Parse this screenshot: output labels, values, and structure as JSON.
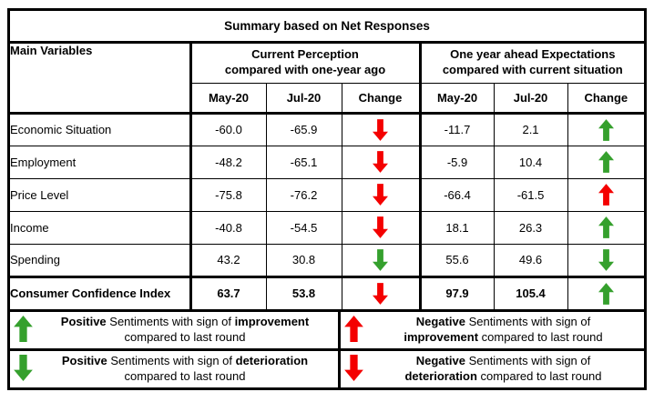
{
  "title": "Summary based on Net Responses",
  "colors": {
    "green": "#35A02D",
    "red": "#F40000",
    "border": "#000000"
  },
  "table": {
    "main_col_header": "Main Variables",
    "groups": [
      {
        "line1": "Current Perception",
        "line2": "compared with one-year ago"
      },
      {
        "line1": "One year ahead Expectations",
        "line2": "compared with current situation"
      }
    ],
    "sub_headers": [
      "May-20",
      "Jul-20",
      "Change"
    ],
    "rows": [
      {
        "label": "Economic Situation",
        "cp_may": "-60.0",
        "cp_jul": "-65.9",
        "cp_change": "down-red",
        "exp_may": "-11.7",
        "exp_jul": "2.1",
        "exp_change": "up-green",
        "bold": false
      },
      {
        "label": "Employment",
        "cp_may": "-48.2",
        "cp_jul": "-65.1",
        "cp_change": "down-red",
        "exp_may": "-5.9",
        "exp_jul": "10.4",
        "exp_change": "up-green",
        "bold": false
      },
      {
        "label": "Price Level",
        "cp_may": "-75.8",
        "cp_jul": "-76.2",
        "cp_change": "down-red",
        "exp_may": "-66.4",
        "exp_jul": "-61.5",
        "exp_change": "up-red",
        "bold": false
      },
      {
        "label": "Income",
        "cp_may": "-40.8",
        "cp_jul": "-54.5",
        "cp_change": "down-red",
        "exp_may": "18.1",
        "exp_jul": "26.3",
        "exp_change": "up-green",
        "bold": false
      },
      {
        "label": "Spending",
        "cp_may": "43.2",
        "cp_jul": "30.8",
        "cp_change": "down-green",
        "exp_may": "55.6",
        "exp_jul": "49.6",
        "exp_change": "down-green",
        "bold": false
      },
      {
        "label": "Consumer Confidence Index",
        "cp_may": "63.7",
        "cp_jul": "53.8",
        "cp_change": "down-red",
        "exp_may": "97.9",
        "exp_jul": "105.4",
        "exp_change": "up-green",
        "bold": true
      }
    ]
  },
  "legend": [
    {
      "arrow": "up-green",
      "l1b": "Positive",
      "l1t": " Sentiments with sign of ",
      "l1b2": "improvement",
      "l2b": "",
      "l2t": "compared to last round"
    },
    {
      "arrow": "up-red",
      "l1b": "Negative",
      "l1t": " Sentiments with sign of",
      "l1b2": "",
      "l2b": "improvement",
      "l2t": " compared to last round"
    },
    {
      "arrow": "down-green",
      "l1b": "Positive",
      "l1t": " Sentiments with sign of ",
      "l1b2": "deterioration",
      "l2b": "",
      "l2t": "compared to last round"
    },
    {
      "arrow": "down-red",
      "l1b": "Negative",
      "l1t": " Sentiments with sign of",
      "l1b2": "",
      "l2b": "deterioration",
      "l2t": " compared to last round"
    }
  ]
}
